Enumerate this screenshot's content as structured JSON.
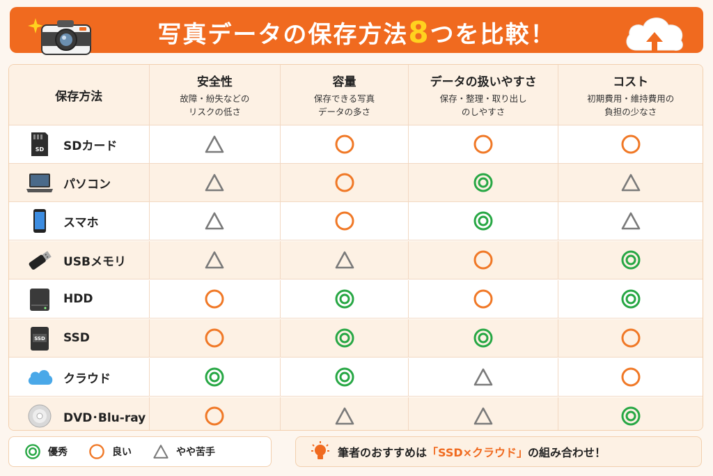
{
  "header": {
    "title_before": "写真データの保存方法",
    "title_number": "8",
    "title_after": "つを比較！"
  },
  "table": {
    "columns": [
      {
        "title": "保存方法",
        "sub1": "",
        "sub2": ""
      },
      {
        "title": "安全性",
        "sub1": "故障・紛失などの",
        "sub2": "リスクの低さ"
      },
      {
        "title": "容量",
        "sub1": "保存できる写真",
        "sub2": "データの多さ"
      },
      {
        "title": "データの扱いやすさ",
        "sub1": "保存・整理・取り出し",
        "sub2": "のしやすさ"
      },
      {
        "title": "コスト",
        "sub1": "初期費用・維持費用の",
        "sub2": "負担の少なさ"
      }
    ],
    "rows": [
      {
        "label": "SDカード",
        "icon": "sd-card-icon",
        "ratings": [
          "triangle",
          "circle",
          "circle",
          "circle"
        ]
      },
      {
        "label": "パソコン",
        "icon": "laptop-icon",
        "ratings": [
          "triangle",
          "circle",
          "double-circle",
          "triangle"
        ]
      },
      {
        "label": "スマホ",
        "icon": "smartphone-icon",
        "ratings": [
          "triangle",
          "circle",
          "double-circle",
          "triangle"
        ]
      },
      {
        "label": "USBメモリ",
        "icon": "usb-memory-icon",
        "ratings": [
          "triangle",
          "triangle",
          "circle",
          "double-circle"
        ]
      },
      {
        "label": "HDD",
        "icon": "hdd-icon",
        "ratings": [
          "circle",
          "double-circle",
          "circle",
          "double-circle"
        ]
      },
      {
        "label": "SSD",
        "icon": "ssd-icon",
        "ratings": [
          "circle",
          "double-circle",
          "double-circle",
          "circle"
        ]
      },
      {
        "label": "クラウド",
        "icon": "cloud-icon",
        "ratings": [
          "double-circle",
          "double-circle",
          "triangle",
          "circle"
        ]
      },
      {
        "label": "DVD･Blu-ray",
        "icon": "disc-icon",
        "ratings": [
          "circle",
          "triangle",
          "triangle",
          "double-circle"
        ]
      }
    ]
  },
  "legend": [
    {
      "symbol": "double-circle",
      "label": "優秀"
    },
    {
      "symbol": "circle",
      "label": "良い"
    },
    {
      "symbol": "triangle",
      "label": "やや苦手"
    }
  ],
  "tip": {
    "before": "筆者のおすすめは",
    "highlight": "「SSD×クラウド」",
    "after": "の組み合わせ！"
  },
  "colors": {
    "accent": "#f06a1f",
    "double_circle": "#27a744",
    "circle": "#f07826",
    "triangle": "#7a7a7a",
    "title_highlight": "#ffd21f"
  }
}
